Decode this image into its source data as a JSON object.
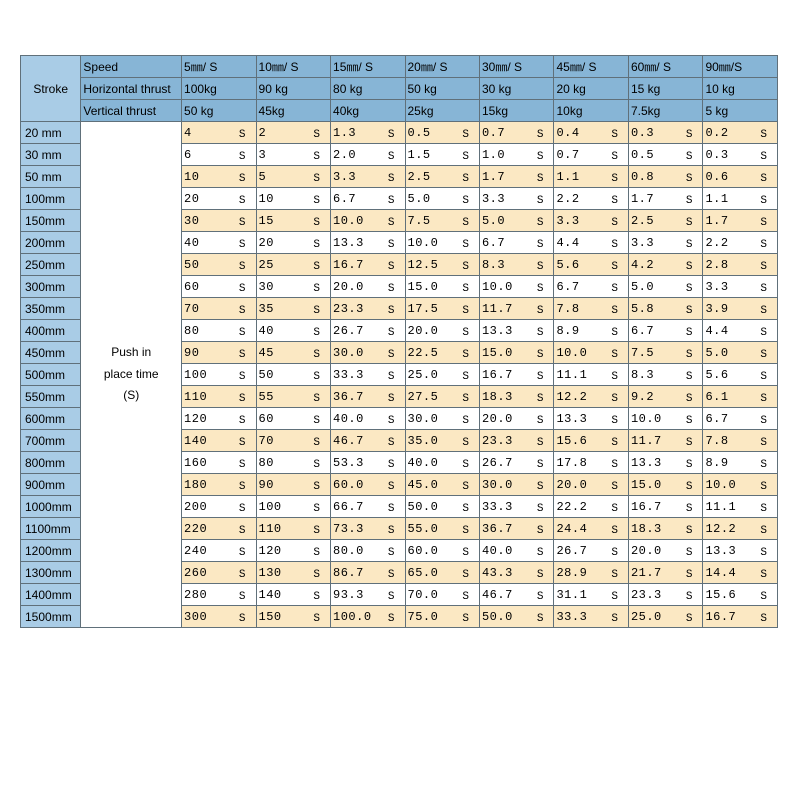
{
  "type": "table",
  "colors": {
    "header_blue": "#87b5d6",
    "light_blue": "#a9cce6",
    "cream": "#fbe8c3",
    "white": "#ffffff",
    "border": "#60707a"
  },
  "corner_label": "Stroke",
  "push_label_1": "Push in",
  "push_label_2": "place time",
  "push_label_3": "(S)",
  "attr_rows": [
    "Speed",
    "Horizontal thrust",
    "Vertical thrust"
  ],
  "speeds": [
    "5㎜/ S",
    "10㎜/ S",
    "15㎜/ S",
    "20㎜/ S",
    "30㎜/ S",
    "45㎜/ S",
    "60㎜/ S",
    "90㎜/S"
  ],
  "hthrust": [
    "100kg",
    "90 kg",
    "80 kg",
    "50 kg",
    "30 kg",
    "20 kg",
    "15 kg",
    "10 kg"
  ],
  "vthrust": [
    " 50 kg",
    "45kg",
    "40kg",
    "25kg",
    "15kg",
    "10kg",
    "7.5kg",
    "5 kg"
  ],
  "strokes": [
    "20 mm",
    "30 mm",
    "50 mm",
    "100mm",
    "150mm",
    "200mm",
    "250mm",
    "300mm",
    "350mm",
    "400mm",
    "450mm",
    "500mm",
    "550mm",
    "600mm",
    "700mm",
    "800mm",
    "900mm",
    "1000mm",
    "1100mm",
    "1200mm",
    "1300mm",
    "1400mm",
    "1500mm"
  ],
  "data": [
    [
      "4",
      "2",
      "1.3",
      "0.5",
      "0.7",
      "0.4",
      "0.3",
      "0.2"
    ],
    [
      "6",
      "3",
      "2.0",
      "1.5",
      "1.0",
      "0.7",
      "0.5",
      "0.3"
    ],
    [
      "10",
      "5",
      "3.3",
      "2.5",
      "1.7",
      "1.1",
      "0.8",
      "0.6"
    ],
    [
      "20",
      "10",
      "6.7",
      "5.0",
      "3.3",
      "2.2",
      "1.7",
      "1.1"
    ],
    [
      "30",
      "15",
      "10.0",
      "7.5",
      "5.0",
      "3.3",
      "2.5",
      "1.7"
    ],
    [
      "40",
      "20",
      "13.3",
      "10.0",
      "6.7",
      "4.4",
      "3.3",
      "2.2"
    ],
    [
      "50",
      "25",
      "16.7",
      "12.5",
      "8.3",
      "5.6",
      "4.2",
      "2.8"
    ],
    [
      "60",
      "30",
      "20.0",
      "15.0",
      "10.0",
      "6.7",
      "5.0",
      "3.3"
    ],
    [
      "70",
      "35",
      "23.3",
      "17.5",
      "11.7",
      "7.8",
      "5.8",
      "3.9"
    ],
    [
      "80",
      "40",
      "26.7",
      "20.0",
      "13.3",
      "8.9",
      "6.7",
      "4.4"
    ],
    [
      "90",
      "45",
      "30.0",
      "22.5",
      "15.0",
      "10.0",
      "7.5",
      "5.0"
    ],
    [
      "100",
      "50",
      "33.3",
      "25.0",
      "16.7",
      "11.1",
      "8.3",
      "5.6"
    ],
    [
      "110",
      "55",
      "36.7",
      "27.5",
      "18.3",
      "12.2",
      "9.2",
      "6.1"
    ],
    [
      "120",
      "60",
      "40.0",
      "30.0",
      "20.0",
      "13.3",
      "10.0",
      "6.7"
    ],
    [
      "140",
      "70",
      "46.7",
      "35.0",
      "23.3",
      "15.6",
      "11.7",
      "7.8"
    ],
    [
      "160",
      "80",
      "53.3",
      "40.0",
      "26.7",
      "17.8",
      "13.3",
      "8.9"
    ],
    [
      "180",
      "90",
      "60.0",
      "45.0",
      "30.0",
      "20.0",
      "15.0",
      "10.0"
    ],
    [
      "200",
      "100",
      "66.7",
      "50.0",
      "33.3",
      "22.2",
      "16.7",
      "11.1"
    ],
    [
      "220",
      "110",
      "73.3",
      "55.0",
      "36.7",
      "24.4",
      "18.3",
      "12.2"
    ],
    [
      "240",
      "120",
      "80.0",
      "60.0",
      "40.0",
      "26.7",
      "20.0",
      "13.3"
    ],
    [
      "260",
      "130",
      "86.7",
      "65.0",
      "43.3",
      "28.9",
      "21.7",
      "14.4"
    ],
    [
      "280",
      "140",
      "93.3",
      "70.0",
      "46.7",
      "31.1",
      "23.3",
      "15.6"
    ],
    [
      "300",
      "150",
      "100.0",
      "75.0",
      "50.0",
      "33.3",
      "25.0",
      "16.7"
    ]
  ],
  "unit": "S"
}
